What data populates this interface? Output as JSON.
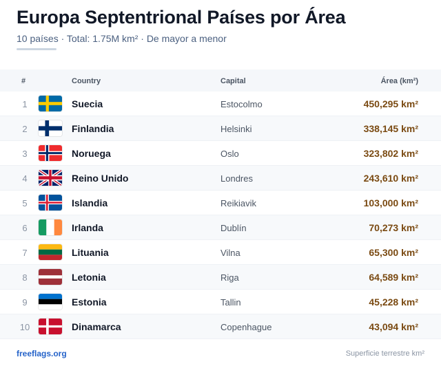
{
  "header": {
    "title": "Europa Septentrional Países por Área",
    "subtitle": "10 países · Total: 1.75M km² · De mayor a menor"
  },
  "table": {
    "columns": {
      "num": "#",
      "country": "Country",
      "capital": "Capital",
      "area": "Área (km²)"
    },
    "rows": [
      {
        "num": "1",
        "country": "Suecia",
        "capital": "Estocolmo",
        "area": "450,295 km²",
        "flag": "sweden-flag-icon"
      },
      {
        "num": "2",
        "country": "Finlandia",
        "capital": "Helsinki",
        "area": "338,145 km²",
        "flag": "finland-flag-icon"
      },
      {
        "num": "3",
        "country": "Noruega",
        "capital": "Oslo",
        "area": "323,802 km²",
        "flag": "norway-flag-icon"
      },
      {
        "num": "4",
        "country": "Reino Unido",
        "capital": "Londres",
        "area": "243,610 km²",
        "flag": "united-kingdom-flag-icon"
      },
      {
        "num": "5",
        "country": "Islandia",
        "capital": "Reikiavik",
        "area": "103,000 km²",
        "flag": "iceland-flag-icon"
      },
      {
        "num": "6",
        "country": "Irlanda",
        "capital": "Dublín",
        "area": "70,273 km²",
        "flag": "ireland-flag-icon"
      },
      {
        "num": "7",
        "country": "Lituania",
        "capital": "Vilna",
        "area": "65,300 km²",
        "flag": "lithuania-flag-icon"
      },
      {
        "num": "8",
        "country": "Letonia",
        "capital": "Riga",
        "area": "64,589 km²",
        "flag": "latvia-flag-icon"
      },
      {
        "num": "9",
        "country": "Estonia",
        "capital": "Tallin",
        "area": "45,228 km²",
        "flag": "estonia-flag-icon"
      },
      {
        "num": "10",
        "country": "Dinamarca",
        "capital": "Copenhague",
        "area": "43,094 km²",
        "flag": "denmark-flag-icon"
      }
    ]
  },
  "footer": {
    "source": "freeflags.org",
    "note": "Superficie terrestre km²"
  },
  "colors": {
    "area_text": "#7a4a12",
    "link": "#2563c9",
    "header_bg": "#f5f7fa"
  }
}
